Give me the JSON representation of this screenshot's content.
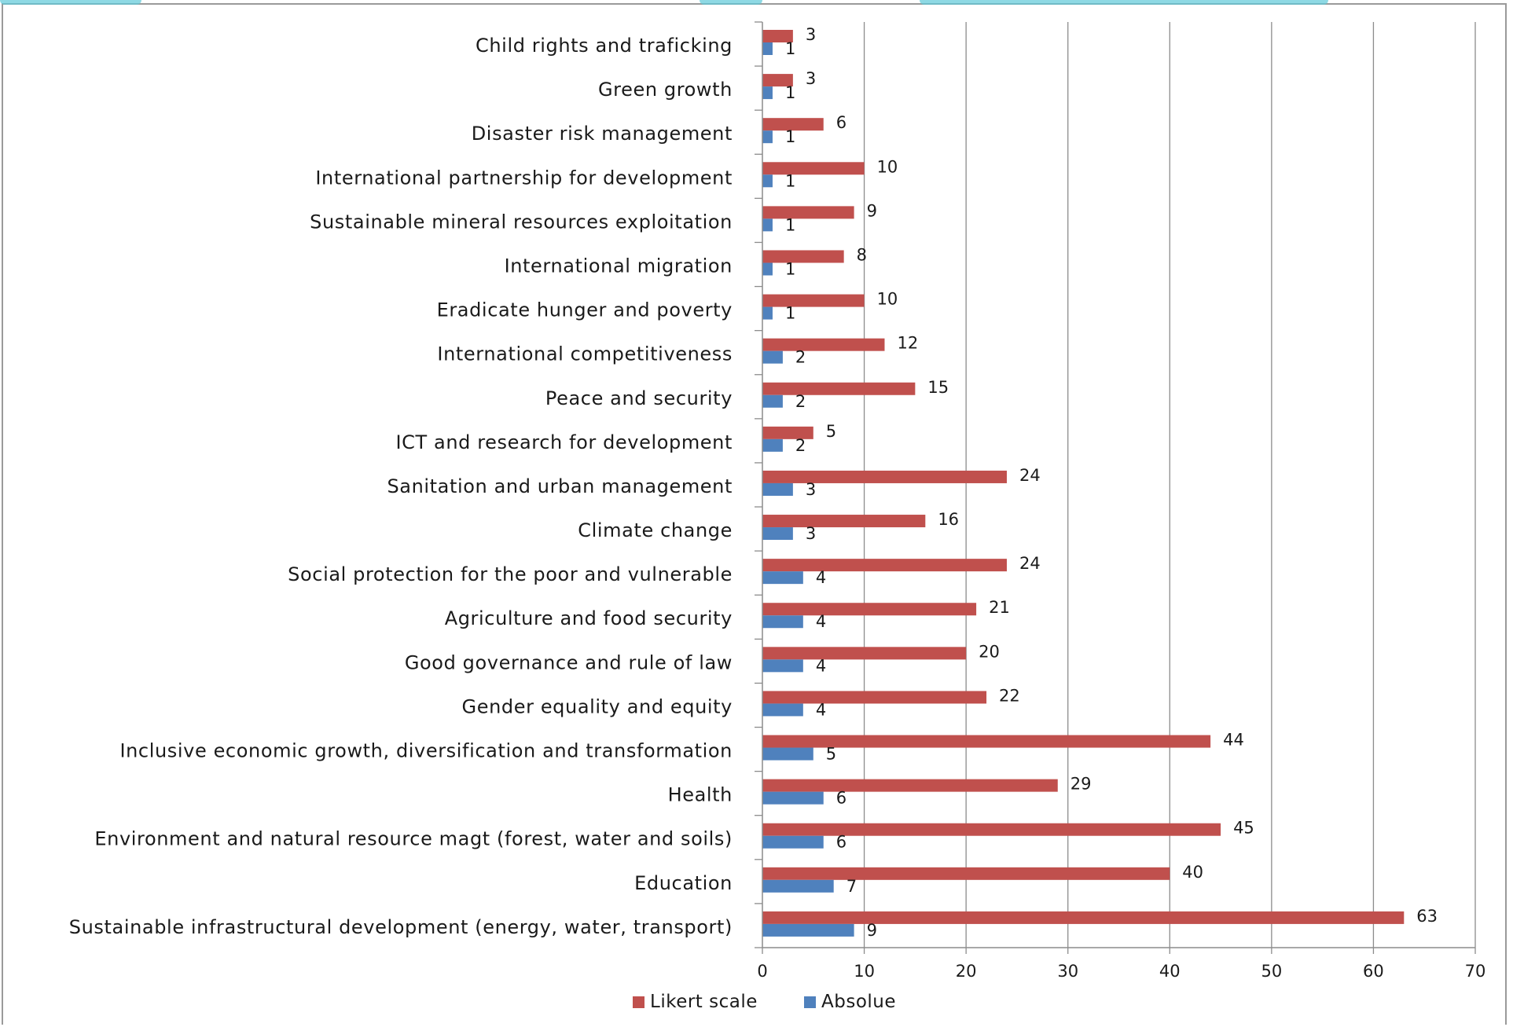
{
  "chart_data": {
    "type": "bar",
    "orientation": "horizontal",
    "categories": [
      "Child rights and traficking",
      "Green growth",
      "Disaster risk management",
      "International partnership for development",
      "Sustainable mineral resources exploitation",
      "International migration",
      "Eradicate hunger and poverty",
      "International competitiveness",
      "Peace and security",
      "ICT and research for development",
      "Sanitation and urban management",
      "Climate change",
      "Social protection for the poor and vulnerable",
      "Agriculture and food security",
      "Good governance and rule of law",
      "Gender equality and equity",
      "Inclusive economic growth, diversification and transformation",
      "Health",
      "Environment and natural resource  magt (forest, water and soils)",
      "Education",
      "Sustainable infrastructural development (energy, water, transport)"
    ],
    "series": [
      {
        "name": "Likert scale",
        "color": "#c0504d",
        "values": [
          3,
          3,
          6,
          10,
          9,
          8,
          10,
          12,
          15,
          5,
          24,
          16,
          24,
          21,
          20,
          22,
          44,
          29,
          45,
          40,
          63
        ]
      },
      {
        "name": "Absolue",
        "color": "#4f81bd",
        "values": [
          1,
          1,
          1,
          1,
          1,
          1,
          1,
          2,
          2,
          2,
          3,
          3,
          4,
          4,
          4,
          4,
          5,
          6,
          6,
          7,
          9
        ]
      }
    ],
    "xlim": [
      0,
      70
    ],
    "xticks": [
      0,
      10,
      20,
      30,
      40,
      50,
      60,
      70
    ],
    "grid": true,
    "legend_position": "bottom"
  }
}
